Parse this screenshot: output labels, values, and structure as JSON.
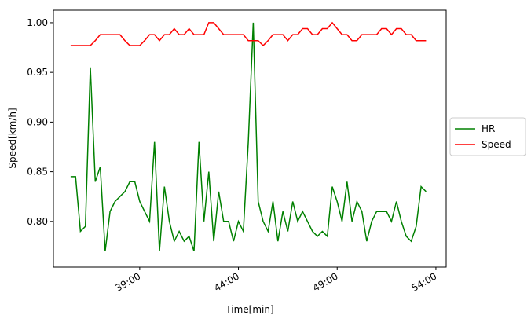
{
  "chart_data": {
    "type": "line",
    "x_label": "Time[min]",
    "y_label": "Speed[km/h]",
    "x": [
      35.5,
      35.75,
      36,
      36.25,
      36.5,
      36.75,
      37,
      37.25,
      37.5,
      37.75,
      38,
      38.25,
      38.5,
      38.75,
      39,
      39.25,
      39.5,
      39.75,
      40,
      40.25,
      40.5,
      40.75,
      41,
      41.25,
      41.5,
      41.75,
      42,
      42.25,
      42.5,
      42.75,
      43,
      43.25,
      43.5,
      43.75,
      44,
      44.25,
      44.5,
      44.75,
      45,
      45.25,
      45.5,
      45.75,
      46,
      46.25,
      46.5,
      46.75,
      47,
      47.25,
      47.5,
      47.75,
      48,
      48.25,
      48.5,
      48.75,
      49,
      49.25,
      49.5,
      49.75,
      50,
      50.25,
      50.5,
      50.75,
      51,
      51.25,
      51.5,
      51.75,
      52,
      52.25,
      52.5,
      52.75,
      53,
      53.25,
      53.5
    ],
    "series": [
      {
        "name": "HR",
        "color": "#008000",
        "values": [
          0.845,
          0.845,
          0.79,
          0.795,
          0.955,
          0.84,
          0.855,
          0.77,
          0.81,
          0.82,
          0.825,
          0.83,
          0.84,
          0.84,
          0.82,
          0.81,
          0.8,
          0.88,
          0.77,
          0.835,
          0.8,
          0.78,
          0.79,
          0.78,
          0.785,
          0.77,
          0.88,
          0.8,
          0.85,
          0.78,
          0.83,
          0.8,
          0.8,
          0.78,
          0.8,
          0.79,
          0.88,
          1.0,
          0.82,
          0.8,
          0.79,
          0.82,
          0.78,
          0.81,
          0.79,
          0.82,
          0.8,
          0.81,
          0.8,
          0.79,
          0.785,
          0.79,
          0.785,
          0.835,
          0.82,
          0.8,
          0.84,
          0.8,
          0.82,
          0.81,
          0.78,
          0.8,
          0.81,
          0.81,
          0.81,
          0.8,
          0.82,
          0.8,
          0.785,
          0.78,
          0.795,
          0.835,
          0.83
        ]
      },
      {
        "name": "Speed",
        "color": "#ff0000",
        "values": [
          0.977,
          0.977,
          0.977,
          0.977,
          0.977,
          0.982,
          0.988,
          0.988,
          0.988,
          0.988,
          0.988,
          0.982,
          0.977,
          0.977,
          0.977,
          0.982,
          0.988,
          0.988,
          0.982,
          0.988,
          0.988,
          0.994,
          0.988,
          0.988,
          0.994,
          0.988,
          0.988,
          0.988,
          1.0,
          1.0,
          0.994,
          0.988,
          0.988,
          0.988,
          0.988,
          0.988,
          0.982,
          0.982,
          0.982,
          0.977,
          0.982,
          0.988,
          0.988,
          0.988,
          0.982,
          0.988,
          0.988,
          0.994,
          0.994,
          0.988,
          0.988,
          0.994,
          0.994,
          1.0,
          0.994,
          0.988,
          0.988,
          0.982,
          0.982,
          0.988,
          0.988,
          0.988,
          0.988,
          0.994,
          0.994,
          0.988,
          0.994,
          0.994,
          0.988,
          0.988,
          0.982,
          0.982,
          0.982
        ]
      }
    ],
    "xlim": [
      34.63,
      54.52
    ],
    "ylim": [
      0.754,
      1.0126
    ],
    "xticks": [
      {
        "value": 39,
        "label": "39:00"
      },
      {
        "value": 44,
        "label": "44:00"
      },
      {
        "value": 49,
        "label": "49:00"
      },
      {
        "value": 54,
        "label": "54:00"
      }
    ],
    "yticks": [
      {
        "value": 0.8,
        "label": "0.80"
      },
      {
        "value": 0.85,
        "label": "0.85"
      },
      {
        "value": 0.9,
        "label": "0.90"
      },
      {
        "value": 0.95,
        "label": "0.95"
      },
      {
        "value": 1.0,
        "label": "1.00"
      }
    ],
    "legend": "right"
  }
}
